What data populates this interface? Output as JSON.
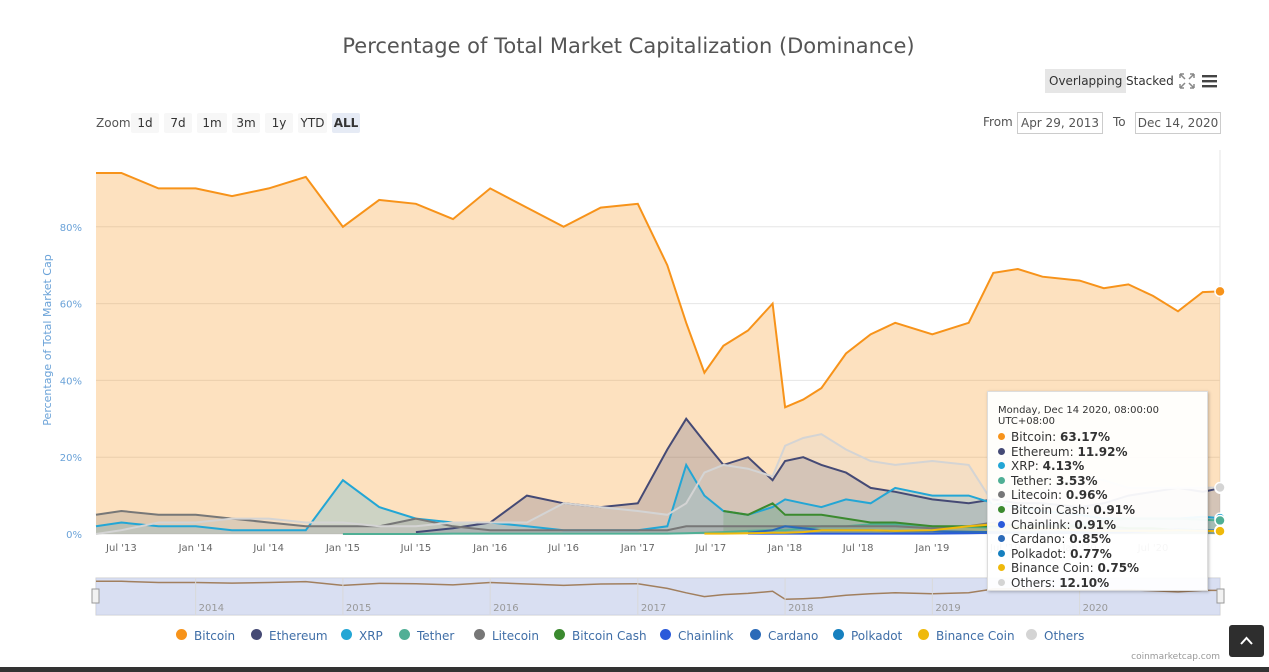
{
  "chart_data": {
    "type": "area",
    "title": "Percentage of Total Market Capitalization (Dominance)",
    "ylabel": "Percentage of Total Market Cap",
    "ylim": [
      0,
      100
    ],
    "y_ticks": [
      "0%",
      "20%",
      "40%",
      "60%",
      "80%"
    ],
    "x_ticks": [
      "Jul '13",
      "Jan '14",
      "Jul '14",
      "Jan '15",
      "Jul '15",
      "Jan '16",
      "Jul '16",
      "Jan '17",
      "Jul '17",
      "Jan '18",
      "Jul '18",
      "Jan '19",
      "Jul '19",
      "Jan '20",
      "Jul '20"
    ],
    "navigator_ticks": [
      "2014",
      "2015",
      "2016",
      "2017",
      "2018",
      "2019",
      "2020"
    ],
    "x": [
      "2013-04-29",
      "2013-07-01",
      "2013-10-01",
      "2014-01-01",
      "2014-04-01",
      "2014-07-01",
      "2014-10-01",
      "2015-01-01",
      "2015-04-01",
      "2015-07-01",
      "2015-10-01",
      "2016-01-01",
      "2016-04-01",
      "2016-07-01",
      "2016-10-01",
      "2017-01-01",
      "2017-03-15",
      "2017-05-01",
      "2017-06-15",
      "2017-08-01",
      "2017-10-01",
      "2017-12-01",
      "2018-01-01",
      "2018-02-15",
      "2018-04-01",
      "2018-06-01",
      "2018-08-01",
      "2018-10-01",
      "2019-01-01",
      "2019-04-01",
      "2019-06-01",
      "2019-08-01",
      "2019-10-01",
      "2020-01-01",
      "2020-03-01",
      "2020-05-01",
      "2020-07-01",
      "2020-09-01",
      "2020-11-01",
      "2020-12-14"
    ],
    "series": [
      {
        "name": "Bitcoin",
        "color": "#f7931a",
        "values": [
          94,
          94,
          90,
          90,
          88,
          90,
          93,
          80,
          87,
          86,
          82,
          90,
          85,
          80,
          85,
          86,
          70,
          55,
          42,
          49,
          53,
          60,
          33,
          35,
          38,
          47,
          52,
          55,
          52,
          55,
          68,
          69,
          67,
          66,
          64,
          65,
          62,
          58,
          63,
          63.17
        ]
      },
      {
        "name": "Ethereum",
        "color": "#454a75",
        "values": [
          null,
          null,
          null,
          null,
          null,
          null,
          null,
          null,
          null,
          0.5,
          1.5,
          3,
          10,
          8,
          7,
          8,
          22,
          30,
          24,
          18,
          20,
          14,
          19,
          20,
          18,
          16,
          12,
          11,
          9,
          8,
          9,
          8,
          8,
          7,
          8,
          10,
          11,
          12,
          11,
          11.92
        ]
      },
      {
        "name": "XRP",
        "color": "#23a6d5",
        "values": [
          2,
          3,
          2,
          2,
          1,
          1,
          1,
          14,
          7,
          4,
          3,
          3,
          2,
          1,
          1,
          1,
          2,
          18,
          10,
          6,
          5,
          7,
          9,
          8,
          7,
          9,
          8,
          12,
          10,
          10,
          8,
          7,
          6,
          5,
          4,
          4,
          4,
          4,
          4.5,
          4.13
        ]
      },
      {
        "name": "Tether",
        "color": "#50af95",
        "values": [
          null,
          null,
          null,
          null,
          null,
          null,
          null,
          0,
          0,
          0,
          0.1,
          0.1,
          0.1,
          0.1,
          0.1,
          0.1,
          0.1,
          0.2,
          0.3,
          0.5,
          0.8,
          1,
          1,
          1.5,
          2,
          2,
          2.5,
          2.5,
          2,
          1.8,
          1.7,
          2,
          2,
          2.5,
          3.5,
          4,
          4,
          4,
          3.7,
          3.53
        ]
      },
      {
        "name": "Litecoin",
        "color": "#777777",
        "values": [
          5,
          6,
          5,
          5,
          4,
          3,
          2,
          2,
          2,
          4,
          2,
          1,
          1,
          1,
          1,
          1,
          1,
          2,
          2,
          2,
          2,
          2,
          2,
          2,
          2,
          2,
          2,
          2,
          1.5,
          2,
          3,
          2,
          2,
          2,
          1,
          1,
          1,
          1,
          1,
          0.96
        ]
      },
      {
        "name": "Bitcoin Cash",
        "color": "#3b8a2f",
        "values": [
          null,
          null,
          null,
          null,
          null,
          null,
          null,
          null,
          null,
          null,
          null,
          null,
          null,
          null,
          null,
          null,
          null,
          null,
          null,
          6,
          5,
          8,
          5,
          5,
          5,
          4,
          3,
          3,
          2,
          2,
          2,
          2,
          2,
          2,
          2,
          1.5,
          1.5,
          1,
          0.9,
          0.91
        ]
      },
      {
        "name": "Chainlink",
        "color": "#2a5ada",
        "values": [
          null,
          null,
          null,
          null,
          null,
          null,
          null,
          null,
          null,
          null,
          null,
          null,
          null,
          null,
          null,
          null,
          null,
          null,
          null,
          null,
          0.1,
          0.1,
          0.1,
          0.1,
          0.1,
          0.1,
          0.1,
          0.1,
          0.1,
          0.2,
          0.3,
          0.4,
          0.3,
          0.3,
          0.4,
          0.5,
          0.8,
          1.2,
          0.9,
          0.91
        ]
      },
      {
        "name": "Cardano",
        "color": "#2b6ab8",
        "values": [
          null,
          null,
          null,
          null,
          null,
          null,
          null,
          null,
          null,
          null,
          null,
          null,
          null,
          null,
          null,
          null,
          null,
          null,
          null,
          null,
          0.3,
          1,
          2,
          1.5,
          1,
          1,
          1,
          0.7,
          0.7,
          0.6,
          0.5,
          0.4,
          0.4,
          0.5,
          0.6,
          0.7,
          0.8,
          0.9,
          0.8,
          0.85
        ]
      },
      {
        "name": "Polkadot",
        "color": "#1680bf",
        "values": [
          null,
          null,
          null,
          null,
          null,
          null,
          null,
          null,
          null,
          null,
          null,
          null,
          null,
          null,
          null,
          null,
          null,
          null,
          null,
          null,
          null,
          null,
          null,
          null,
          null,
          null,
          null,
          null,
          null,
          null,
          null,
          null,
          null,
          null,
          null,
          null,
          null,
          1.2,
          1,
          0.77
        ]
      },
      {
        "name": "Binance Coin",
        "color": "#efb90b",
        "values": [
          null,
          null,
          null,
          null,
          null,
          null,
          null,
          null,
          null,
          null,
          null,
          null,
          null,
          null,
          null,
          null,
          null,
          null,
          0.1,
          0.1,
          0.2,
          0.3,
          0.3,
          0.5,
          1,
          1,
          1,
          0.8,
          1,
          2,
          2.5,
          1.5,
          1.5,
          1,
          0.8,
          0.8,
          0.8,
          1,
          0.8,
          0.75
        ]
      },
      {
        "name": "Others",
        "color": "#d4d4d4",
        "values": [
          0,
          1,
          3,
          3,
          4,
          4,
          3,
          3,
          2,
          2,
          3,
          3,
          3,
          8,
          7,
          6,
          5,
          8,
          16,
          18,
          17,
          15,
          23,
          25,
          26,
          22,
          19,
          18,
          19,
          18,
          8,
          10,
          11,
          15,
          14,
          12,
          12,
          12,
          12,
          12.1
        ]
      }
    ]
  },
  "tooltip": {
    "header": "Monday, Dec 14 2020, 08:00:00 UTC+08:00",
    "rows": [
      {
        "name": "Bitcoin",
        "value": "63.17%",
        "color": "#f7931a"
      },
      {
        "name": "Ethereum",
        "value": "11.92%",
        "color": "#454a75"
      },
      {
        "name": "XRP",
        "value": "4.13%",
        "color": "#23a6d5"
      },
      {
        "name": "Tether",
        "value": "3.53%",
        "color": "#50af95"
      },
      {
        "name": "Litecoin",
        "value": "0.96%",
        "color": "#777777"
      },
      {
        "name": "Bitcoin Cash",
        "value": "0.91%",
        "color": "#3b8a2f"
      },
      {
        "name": "Chainlink",
        "value": "0.91%",
        "color": "#2a5ada"
      },
      {
        "name": "Cardano",
        "value": "0.85%",
        "color": "#2b6ab8"
      },
      {
        "name": "Polkadot",
        "value": "0.77%",
        "color": "#1680bf"
      },
      {
        "name": "Binance Coin",
        "value": "0.75%",
        "color": "#efb90b"
      },
      {
        "name": "Others",
        "value": "12.10%",
        "color": "#d4d4d4"
      }
    ]
  },
  "controls": {
    "overlapping": "Overlapping",
    "stacked": "Stacked",
    "zoom_label": "Zoom",
    "zoom_buttons": [
      "1d",
      "7d",
      "1m",
      "3m",
      "1y",
      "YTD",
      "ALL"
    ],
    "active_zoom": "ALL",
    "from_label": "From",
    "from_value": "Apr 29, 2013",
    "to_label": "To",
    "to_value": "Dec 14, 2020"
  },
  "icons": [
    "fullscreen-icon",
    "menu-icon",
    "chevron-up-icon"
  ],
  "credit": "coinmarketcap.com"
}
